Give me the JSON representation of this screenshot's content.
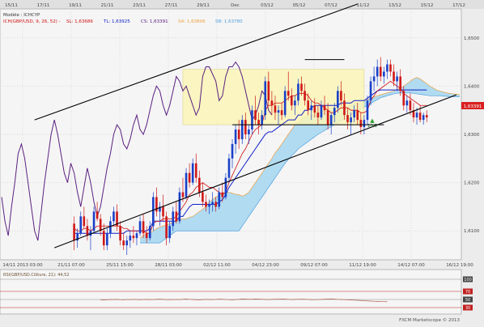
{
  "window": {
    "mode_label": "Modèle : ICHCYP",
    "indicator_line": "ICH(GBP/USD, 9, 26, 52) -",
    "legend": [
      {
        "key": "SL",
        "value": "1,63686",
        "color": "#d01010"
      },
      {
        "key": "TL",
        "value": "1,63925",
        "color": "#1020c8"
      },
      {
        "key": "CS",
        "value": "1,63391",
        "color": "#5a2080"
      },
      {
        "key": "SA",
        "value": "1,63806",
        "color": "#f0a040"
      },
      {
        "key": "SB",
        "value": "1,63780",
        "color": "#50a0e0"
      }
    ],
    "price_badge": "1,63391",
    "bottom_annotation": "10,5",
    "oscillator_title": "RSI(GBP/USD.Clôture, 21): 44,52",
    "oscillator_levels": [
      "100",
      "70",
      "50",
      "30"
    ],
    "watermark": "FXCM Marketscope © 2013"
  },
  "top_axis": [
    "15/11",
    "17/11",
    "19/11",
    "21/11",
    "23/11",
    "27/11",
    "29/11",
    "Dec",
    "03/12",
    "05/12",
    "07/12",
    "11/12",
    "13/12",
    "15/12",
    "17/12"
  ],
  "chart_data": {
    "type": "candlestick",
    "instrument": "GBP/USD",
    "y_ticks": [
      "1,6500",
      "1,6400",
      "1,6300",
      "1,6200",
      "1,6100"
    ],
    "y_range": [
      1.604,
      1.656
    ],
    "x_ticks": [
      "14/11 2013 03:00",
      "21/11 07:00",
      "25/11 15:00",
      "28/11 03:00",
      "02/12 11:00",
      "04/12 23:00",
      "09/12 07:00",
      "11/12 19:00",
      "14/12 07:00",
      "16/12 19:00"
    ],
    "n_slots": 140,
    "candles": [
      [
        1.6115,
        1.613,
        1.606,
        1.608
      ],
      [
        1.608,
        1.6105,
        1.6065,
        1.6095
      ],
      [
        1.6095,
        1.614,
        1.609,
        1.613
      ],
      [
        1.613,
        1.615,
        1.6105,
        1.611
      ],
      [
        1.611,
        1.6125,
        1.608,
        1.609
      ],
      [
        1.609,
        1.611,
        1.606,
        1.61
      ],
      [
        1.61,
        1.615,
        1.6095,
        1.614
      ],
      [
        1.614,
        1.616,
        1.612,
        1.6125
      ],
      [
        1.6125,
        1.6135,
        1.609,
        1.61
      ],
      [
        1.61,
        1.6115,
        1.606,
        1.607
      ],
      [
        1.607,
        1.6105,
        1.606,
        1.6095
      ],
      [
        1.6095,
        1.613,
        1.6085,
        1.612
      ],
      [
        1.612,
        1.615,
        1.611,
        1.614
      ],
      [
        1.614,
        1.6155,
        1.61,
        1.611
      ],
      [
        1.611,
        1.612,
        1.607,
        1.608
      ],
      [
        1.608,
        1.6095,
        1.606,
        1.607
      ],
      [
        1.607,
        1.609,
        1.605,
        1.608
      ],
      [
        1.608,
        1.61,
        1.6065,
        1.609
      ],
      [
        1.609,
        1.611,
        1.6075,
        1.6085
      ],
      [
        1.6085,
        1.61,
        1.607,
        1.6095
      ],
      [
        1.6095,
        1.613,
        1.609,
        1.612
      ],
      [
        1.612,
        1.6135,
        1.6085,
        1.6095
      ],
      [
        1.6095,
        1.611,
        1.6075,
        1.6085
      ],
      [
        1.6085,
        1.612,
        1.608,
        1.611
      ],
      [
        1.611,
        1.618,
        1.61,
        1.617
      ],
      [
        1.617,
        1.619,
        1.613,
        1.614
      ],
      [
        1.614,
        1.616,
        1.611,
        1.615
      ],
      [
        1.615,
        1.6175,
        1.612,
        1.613
      ],
      [
        1.613,
        1.614,
        1.607,
        1.6085
      ],
      [
        1.6085,
        1.612,
        1.6075,
        1.611
      ],
      [
        1.611,
        1.615,
        1.61,
        1.614
      ],
      [
        1.614,
        1.616,
        1.6115,
        1.612
      ],
      [
        1.612,
        1.619,
        1.6115,
        1.618
      ],
      [
        1.618,
        1.621,
        1.616,
        1.617
      ],
      [
        1.617,
        1.623,
        1.6165,
        1.622
      ],
      [
        1.622,
        1.624,
        1.619,
        1.62
      ],
      [
        1.62,
        1.625,
        1.6195,
        1.624
      ],
      [
        1.624,
        1.626,
        1.62,
        1.621
      ],
      [
        1.621,
        1.6225,
        1.617,
        1.618
      ],
      [
        1.618,
        1.62,
        1.615,
        1.616
      ],
      [
        1.616,
        1.6175,
        1.614,
        1.615
      ],
      [
        1.615,
        1.6165,
        1.6135,
        1.6155
      ],
      [
        1.6155,
        1.618,
        1.614,
        1.616
      ],
      [
        1.616,
        1.617,
        1.614,
        1.615
      ],
      [
        1.615,
        1.619,
        1.6145,
        1.618
      ],
      [
        1.618,
        1.62,
        1.616,
        1.617
      ],
      [
        1.617,
        1.622,
        1.6165,
        1.621
      ],
      [
        1.621,
        1.626,
        1.62,
        1.625
      ],
      [
        1.625,
        1.629,
        1.623,
        1.628
      ],
      [
        1.628,
        1.632,
        1.626,
        1.631
      ],
      [
        1.631,
        1.633,
        1.627,
        1.629
      ],
      [
        1.629,
        1.634,
        1.628,
        1.633
      ],
      [
        1.633,
        1.6345,
        1.629,
        1.63
      ],
      [
        1.63,
        1.632,
        1.628,
        1.631
      ],
      [
        1.631,
        1.636,
        1.63,
        1.635
      ],
      [
        1.635,
        1.638,
        1.632,
        1.633
      ],
      [
        1.633,
        1.6345,
        1.63,
        1.632
      ],
      [
        1.632,
        1.635,
        1.631,
        1.634
      ],
      [
        1.634,
        1.642,
        1.633,
        1.641
      ],
      [
        1.641,
        1.643,
        1.636,
        1.637
      ],
      [
        1.637,
        1.639,
        1.634,
        1.636
      ],
      [
        1.636,
        1.638,
        1.633,
        1.6345
      ],
      [
        1.6345,
        1.636,
        1.632,
        1.635
      ],
      [
        1.635,
        1.6365,
        1.633,
        1.634
      ],
      [
        1.634,
        1.64,
        1.6335,
        1.639
      ],
      [
        1.639,
        1.643,
        1.637,
        1.638
      ],
      [
        1.638,
        1.6395,
        1.635,
        1.636
      ],
      [
        1.636,
        1.638,
        1.634,
        1.637
      ],
      [
        1.637,
        1.6415,
        1.636,
        1.6405
      ],
      [
        1.6405,
        1.642,
        1.638,
        1.639
      ],
      [
        1.639,
        1.6405,
        1.636,
        1.637
      ],
      [
        1.637,
        1.6385,
        1.634,
        1.635
      ],
      [
        1.635,
        1.637,
        1.633,
        1.636
      ],
      [
        1.636,
        1.6375,
        1.6335,
        1.6345
      ],
      [
        1.6345,
        1.636,
        1.632,
        1.6335
      ],
      [
        1.6335,
        1.637,
        1.633,
        1.636
      ],
      [
        1.636,
        1.638,
        1.634,
        1.635
      ],
      [
        1.635,
        1.6365,
        1.631,
        1.632
      ],
      [
        1.632,
        1.6345,
        1.63,
        1.634
      ],
      [
        1.634,
        1.6365,
        1.6325,
        1.6355
      ],
      [
        1.6355,
        1.64,
        1.6345,
        1.639
      ],
      [
        1.639,
        1.641,
        1.636,
        1.637
      ],
      [
        1.637,
        1.6385,
        1.633,
        1.634
      ],
      [
        1.634,
        1.6355,
        1.631,
        1.6325
      ],
      [
        1.6325,
        1.6345,
        1.63,
        1.6335
      ],
      [
        1.6335,
        1.636,
        1.6325,
        1.635
      ],
      [
        1.635,
        1.6365,
        1.632,
        1.633
      ],
      [
        1.633,
        1.6345,
        1.63,
        1.6315
      ],
      [
        1.6315,
        1.634,
        1.63,
        1.633
      ],
      [
        1.633,
        1.638,
        1.632,
        1.637
      ],
      [
        1.637,
        1.642,
        1.636,
        1.641
      ],
      [
        1.641,
        1.644,
        1.639,
        1.642
      ],
      [
        1.642,
        1.6455,
        1.64,
        1.644
      ],
      [
        1.644,
        1.646,
        1.641,
        1.642
      ],
      [
        1.642,
        1.644,
        1.6405,
        1.643
      ],
      [
        1.643,
        1.6455,
        1.6415,
        1.6445
      ],
      [
        1.6445,
        1.6455,
        1.642,
        1.643
      ],
      [
        1.643,
        1.6445,
        1.64,
        1.641
      ],
      [
        1.641,
        1.643,
        1.639,
        1.642
      ],
      [
        1.642,
        1.6435,
        1.638,
        1.639
      ],
      [
        1.639,
        1.64,
        1.635,
        1.636
      ],
      [
        1.636,
        1.638,
        1.6345,
        1.637
      ],
      [
        1.637,
        1.6385,
        1.634,
        1.635
      ],
      [
        1.635,
        1.6365,
        1.6325,
        1.6335
      ],
      [
        1.6335,
        1.6355,
        1.632,
        1.6345
      ],
      [
        1.6345,
        1.636,
        1.6325,
        1.633
      ],
      [
        1.633,
        1.6345,
        1.632,
        1.634
      ],
      [
        1.634,
        1.635,
        1.6325,
        1.6335
      ]
    ],
    "tenkan": [
      1.6105,
      1.61,
      1.61,
      1.6105,
      1.6105,
      1.61,
      1.6105,
      1.611,
      1.611,
      1.611,
      1.611,
      1.611,
      1.611,
      1.611,
      1.611,
      1.6105,
      1.6105,
      1.61,
      1.61,
      1.61,
      1.61,
      1.61,
      1.6095,
      1.6095,
      1.6115,
      1.612,
      1.612,
      1.6125,
      1.6125,
      1.6125,
      1.6125,
      1.613,
      1.614,
      1.615,
      1.616,
      1.6175,
      1.618,
      1.619,
      1.6195,
      1.62,
      1.6195,
      1.619,
      1.619,
      1.6185,
      1.618,
      1.6175,
      1.618,
      1.62,
      1.6215,
      1.623,
      1.6245,
      1.626,
      1.627,
      1.6285,
      1.63,
      1.631,
      1.6315,
      1.632,
      1.635,
      1.636,
      1.636,
      1.6365,
      1.6365,
      1.6365,
      1.637,
      1.6375,
      1.638,
      1.638,
      1.6385,
      1.6385,
      1.6385,
      1.638,
      1.637,
      1.6365,
      1.6365,
      1.636,
      1.6355,
      1.635,
      1.6345,
      1.6345,
      1.635,
      1.6355,
      1.6355,
      1.6355,
      1.635,
      1.635,
      1.635,
      1.6345,
      1.6345,
      1.635,
      1.637,
      1.638,
      1.639,
      1.6395,
      1.64,
      1.6405,
      1.641,
      1.6405,
      1.64,
      1.6395,
      1.6385,
      1.638,
      1.6375,
      1.637,
      1.6365,
      1.636,
      1.636,
      1.636
    ],
    "kijun": [
      1.6095,
      1.6095,
      1.6095,
      1.6095,
      1.6095,
      1.6095,
      1.6095,
      1.6095,
      1.6095,
      1.6095,
      1.6095,
      1.6095,
      1.6095,
      1.6095,
      1.6095,
      1.6095,
      1.61,
      1.61,
      1.61,
      1.61,
      1.61,
      1.61,
      1.61,
      1.6105,
      1.612,
      1.612,
      1.612,
      1.612,
      1.612,
      1.612,
      1.612,
      1.612,
      1.613,
      1.613,
      1.614,
      1.615,
      1.6155,
      1.6155,
      1.6155,
      1.6155,
      1.6155,
      1.6155,
      1.6155,
      1.6155,
      1.616,
      1.6165,
      1.6175,
      1.619,
      1.62,
      1.621,
      1.622,
      1.623,
      1.624,
      1.625,
      1.626,
      1.627,
      1.628,
      1.629,
      1.63,
      1.6305,
      1.6305,
      1.631,
      1.6315,
      1.632,
      1.6325,
      1.633,
      1.633,
      1.633,
      1.634,
      1.634,
      1.635,
      1.635,
      1.6355,
      1.636,
      1.636,
      1.636,
      1.636,
      1.636,
      1.636,
      1.636,
      1.636,
      1.6365,
      1.6365,
      1.6365,
      1.6365,
      1.637,
      1.637,
      1.637,
      1.637,
      1.6375,
      1.638,
      1.6385,
      1.639,
      1.6392,
      1.6392,
      1.6392,
      1.6392,
      1.6392,
      1.6392,
      1.6392,
      1.6392,
      1.6392,
      1.6392,
      1.6392,
      1.6392,
      1.6392,
      1.6392,
      1.6392
    ],
    "chikou": [
      1.617,
      1.612,
      1.609,
      1.615,
      1.62,
      1.626,
      1.628,
      1.625,
      1.62,
      1.615,
      1.61,
      1.608,
      1.614,
      1.62,
      1.625,
      1.63,
      1.633,
      1.63,
      1.626,
      1.622,
      1.62,
      1.624,
      1.622,
      1.618,
      1.615,
      1.619,
      1.623,
      1.62,
      1.616,
      1.613,
      1.615,
      1.619,
      1.623,
      1.626,
      1.63,
      1.632,
      1.631,
      1.628,
      1.627,
      1.629,
      1.632,
      1.634,
      1.631,
      1.63,
      1.632,
      1.635,
      1.638,
      1.64,
      1.639,
      1.636,
      1.634,
      1.636,
      1.639,
      1.642,
      1.641,
      1.639,
      1.64,
      1.638,
      1.636,
      1.634,
      1.6355,
      1.642,
      1.644,
      1.644,
      1.6425,
      1.641,
      1.637,
      1.638,
      1.642,
      1.644,
      1.644,
      1.645,
      1.644,
      1.642,
      1.639,
      1.636,
      1.633,
      1.634,
      1.636,
      1.639,
      1.638,
      1.635,
      1.634
    ],
    "senkou_a": [
      1.6085,
      1.609,
      1.6095,
      1.6095,
      1.61,
      1.6105,
      1.6108,
      1.611,
      1.6112,
      1.6115,
      1.6118,
      1.612,
      1.6122,
      1.6125,
      1.6125,
      1.6128,
      1.613,
      1.6135,
      1.614,
      1.6145,
      1.615,
      1.616,
      1.6165,
      1.617,
      1.6175,
      1.6178,
      1.618,
      1.618,
      1.6178,
      1.6176,
      1.6175,
      1.6172,
      1.6175,
      1.618,
      1.619,
      1.62,
      1.621,
      1.622,
      1.623,
      1.624,
      1.625,
      1.6262,
      1.627,
      1.628,
      1.629,
      1.63,
      1.631,
      1.632,
      1.6325,
      1.633,
      1.6335,
      1.634,
      1.634,
      1.6342,
      1.6345,
      1.6348,
      1.635,
      1.6352,
      1.6354,
      1.6355,
      1.6356,
      1.6358,
      1.636,
      1.636,
      1.6362,
      1.6364,
      1.6366,
      1.6368,
      1.637,
      1.6372,
      1.6375,
      1.6378,
      1.638,
      1.6382,
      1.6384,
      1.6386,
      1.6388,
      1.639,
      1.6393,
      1.6396,
      1.64,
      1.6405,
      1.641,
      1.6415,
      1.6418,
      1.6415,
      1.641,
      1.6405,
      1.64,
      1.6396,
      1.6392,
      1.639,
      1.6388,
      1.6386,
      1.6385,
      1.6384,
      1.6383,
      1.6382
    ],
    "senkou_b": [
      1.6075,
      1.6075,
      1.6075,
      1.6075,
      1.6075,
      1.6075,
      1.6075,
      1.608,
      1.6085,
      1.609,
      1.6095,
      1.61,
      1.61,
      1.61,
      1.61,
      1.61,
      1.61,
      1.61,
      1.61,
      1.61,
      1.61,
      1.61,
      1.61,
      1.61,
      1.61,
      1.61,
      1.61,
      1.61,
      1.61,
      1.61,
      1.61,
      1.611,
      1.612,
      1.613,
      1.614,
      1.615,
      1.616,
      1.617,
      1.618,
      1.619,
      1.62,
      1.621,
      1.622,
      1.623,
      1.624,
      1.6248,
      1.6256,
      1.6262,
      1.627,
      1.6275,
      1.628,
      1.6285,
      1.629,
      1.6295,
      1.63,
      1.6304,
      1.6308,
      1.6312,
      1.6316,
      1.632,
      1.6324,
      1.6328,
      1.6332,
      1.6336,
      1.634,
      1.6344,
      1.6348,
      1.6352,
      1.6356,
      1.636,
      1.6364,
      1.6368,
      1.6372,
      1.6376,
      1.6378,
      1.638,
      1.6382,
      1.6384,
      1.6385,
      1.6386,
      1.6386,
      1.6386,
      1.6386,
      1.6385,
      1.6384,
      1.6383,
      1.6382,
      1.6381,
      1.638,
      1.638,
      1.638,
      1.638,
      1.6379,
      1.6379,
      1.6378,
      1.6378,
      1.6378,
      1.6378
    ],
    "rsi": [
      49.0,
      48.5,
      49.5,
      50.0,
      49.8,
      50.3,
      49.6,
      49.2,
      50.1,
      49.8,
      50.4,
      50.0,
      49.5,
      49.9,
      50.2,
      49.7,
      49.9,
      50.5,
      50.8,
      50.3,
      49.6,
      50.0,
      49.5,
      50.1,
      49.8,
      50.6,
      51.0,
      50.4,
      50.0,
      49.3,
      49.0,
      49.7,
      50.2,
      50.0,
      49.8,
      50.4,
      50.9,
      50.5,
      50.1,
      49.6,
      49.2,
      49.8,
      50.6,
      51.2,
      51.0,
      50.5,
      50.8,
      51.3,
      51.0,
      50.6,
      50.2,
      49.8,
      50.3,
      50.7,
      51.1,
      51.4,
      51.0,
      50.4,
      49.8,
      50.2,
      50.6,
      50.9,
      50.5,
      50.1,
      49.7,
      49.4,
      49.9,
      50.3,
      50.8,
      51.2,
      51.5,
      51.0,
      50.4,
      50.0,
      49.6,
      49.2,
      48.8,
      48.4,
      48.0,
      47.5,
      47.0,
      46.5,
      46.0,
      45.6,
      45.2,
      44.8,
      44.6,
      44.5
    ],
    "trend_lines": [
      {
        "name": "upper",
        "from": [
          10,
          1.633
        ],
        "to": [
          108,
          1.657
        ]
      },
      {
        "name": "lower",
        "from": [
          16,
          1.6065
        ],
        "to": [
          138,
          1.6382
        ]
      }
    ],
    "resistance_lines": [
      {
        "from": [
          92,
          1.6455
        ],
        "to": [
          104,
          1.6455
        ]
      },
      {
        "from": [
          70,
          1.632
        ],
        "to": [
          116,
          1.632
        ]
      }
    ],
    "zone": {
      "x": [
        55,
        110
      ],
      "y": [
        1.632,
        1.6435
      ]
    }
  }
}
